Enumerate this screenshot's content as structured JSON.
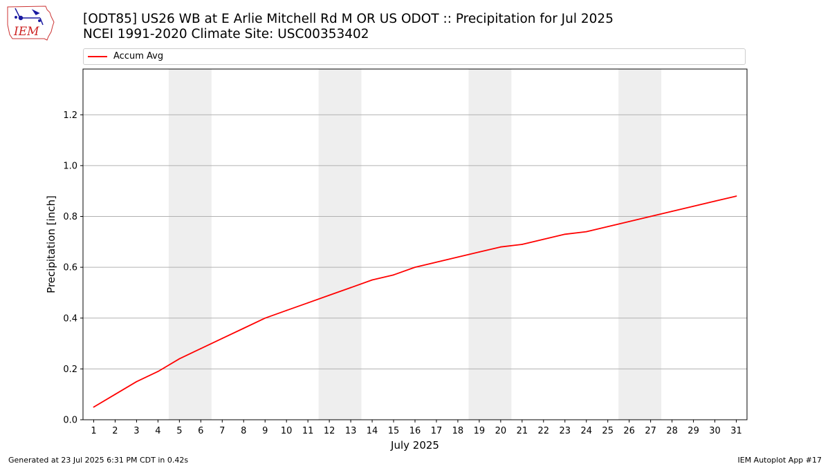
{
  "header": {
    "title_line1": "[ODT85] US26 WB at E Arlie Mitchell Rd M OR US ODOT :: Precipitation for Jul 2025",
    "title_line2": "NCEI 1991-2020 Climate Site: USC00353402",
    "logo_text": "IEM"
  },
  "footer": {
    "generated": "Generated at 23 Jul 2025 6:31 PM CDT in 0.42s",
    "app": "IEM Autoplot App #17"
  },
  "chart_data": {
    "type": "line",
    "title": "[ODT85] US26 WB at E Arlie Mitchell Rd M OR US ODOT :: Precipitation for Jul 2025",
    "subtitle": "NCEI 1991-2020 Climate Site: USC00353402",
    "xlabel": "July 2025",
    "ylabel": "Precipitation [inch]",
    "xlim": [
      0.5,
      31.5
    ],
    "ylim": [
      0,
      1.38
    ],
    "yticks": [
      0.0,
      0.2,
      0.4,
      0.6,
      0.8,
      1.0,
      1.2
    ],
    "ytick_labels": [
      "0.0",
      "0.2",
      "0.4",
      "0.6",
      "0.8",
      "1.0",
      "1.2"
    ],
    "x": [
      1,
      2,
      3,
      4,
      5,
      6,
      7,
      8,
      9,
      10,
      11,
      12,
      13,
      14,
      15,
      16,
      17,
      18,
      19,
      20,
      21,
      22,
      23,
      24,
      25,
      26,
      27,
      28,
      29,
      30,
      31
    ],
    "xtick_labels": [
      "1",
      "2",
      "3",
      "4",
      "5",
      "6",
      "7",
      "8",
      "9",
      "10",
      "11",
      "12",
      "13",
      "14",
      "15",
      "16",
      "17",
      "18",
      "19",
      "20",
      "21",
      "22",
      "23",
      "24",
      "25",
      "26",
      "27",
      "28",
      "29",
      "30",
      "31"
    ],
    "series": [
      {
        "name": "Accum Avg",
        "color": "#ff0000",
        "values": [
          0.05,
          0.1,
          0.15,
          0.19,
          0.24,
          0.28,
          0.32,
          0.36,
          0.4,
          0.43,
          0.46,
          0.49,
          0.52,
          0.55,
          0.57,
          0.6,
          0.62,
          0.64,
          0.66,
          0.68,
          0.69,
          0.71,
          0.73,
          0.74,
          0.76,
          0.78,
          0.8,
          0.82,
          0.84,
          0.86,
          0.88
        ]
      }
    ],
    "weekend_bands": [
      [
        4.5,
        6.5
      ],
      [
        11.5,
        13.5
      ],
      [
        18.5,
        20.5
      ],
      [
        25.5,
        27.5
      ]
    ],
    "band_color": "#eeeeee",
    "grid": "y",
    "grid_color": "#b0b0b0",
    "legend_placement": "top"
  }
}
